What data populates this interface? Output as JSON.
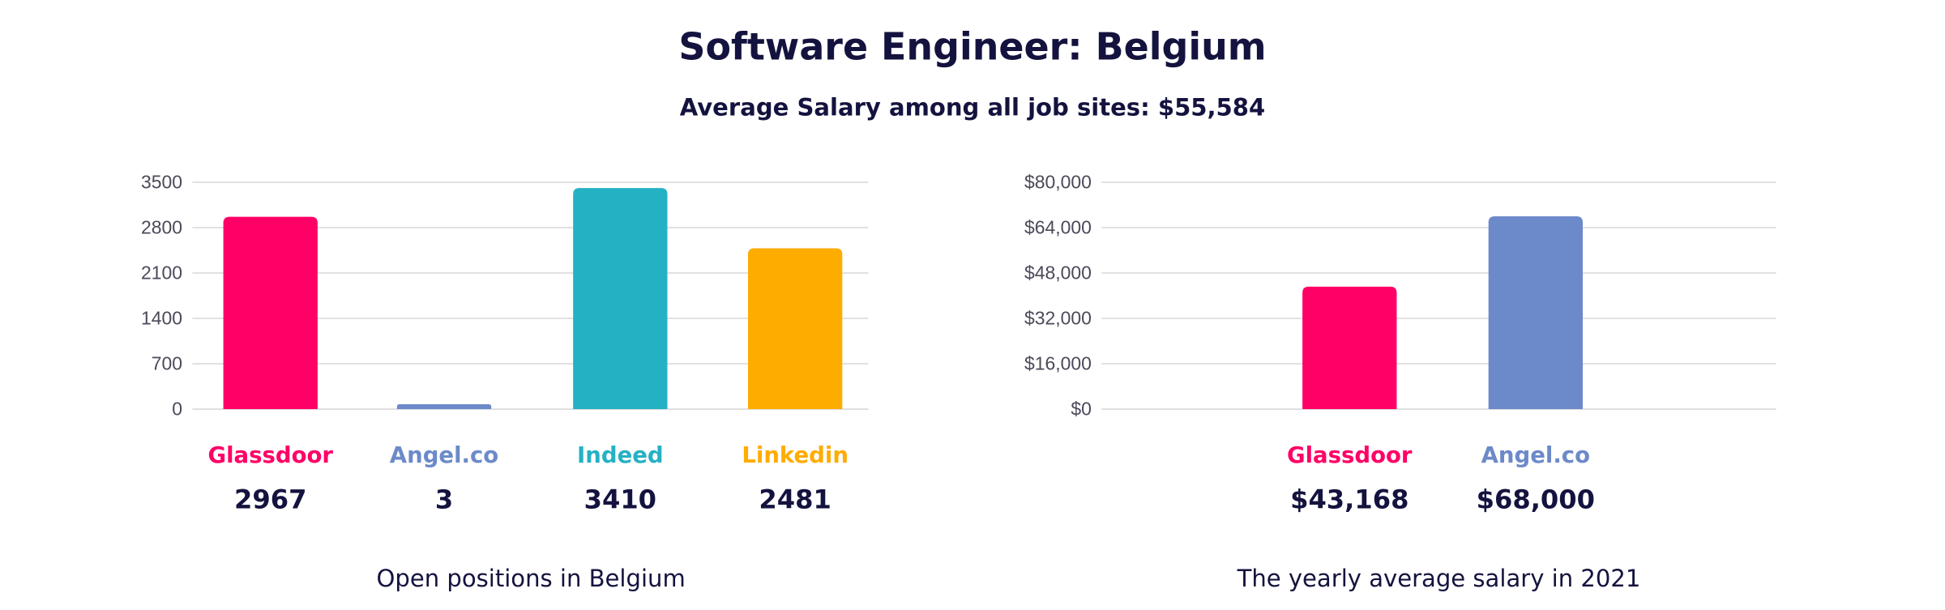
{
  "title": "Software Engineer: Belgium",
  "subtitle": "Average Salary among all job sites: $55,584",
  "chart_data": [
    {
      "type": "bar",
      "title": "Open positions in Belgium",
      "categories": [
        "Glassdoor",
        "Angel.co",
        "Indeed",
        "Linkedin"
      ],
      "values": [
        2967,
        3,
        3410,
        2481
      ],
      "value_labels": [
        "2967",
        "3",
        "3410",
        "2481"
      ],
      "colors": [
        "#ff0066",
        "#6c8ac9",
        "#25b1c4",
        "#ffac00"
      ],
      "ylim": [
        0,
        3500
      ],
      "yticks": [
        0,
        700,
        1400,
        2100,
        2800,
        3500
      ],
      "ytick_labels": [
        "0",
        "700",
        "1400",
        "2100",
        "2800",
        "3500"
      ],
      "grid": true
    },
    {
      "type": "bar",
      "title": "The yearly average salary in 2021",
      "categories": [
        "Glassdoor",
        "Angel.co"
      ],
      "values": [
        43168,
        68000
      ],
      "value_labels": [
        "$43,168",
        "$68,000"
      ],
      "colors": [
        "#ff0066",
        "#6c8ac9"
      ],
      "ylim": [
        0,
        80000
      ],
      "yticks": [
        0,
        16000,
        32000,
        48000,
        64000,
        80000
      ],
      "ytick_labels": [
        "$0",
        "$16,000",
        "$32,000",
        "$48,000",
        "$64,000",
        "$80,000"
      ],
      "grid": true
    }
  ]
}
